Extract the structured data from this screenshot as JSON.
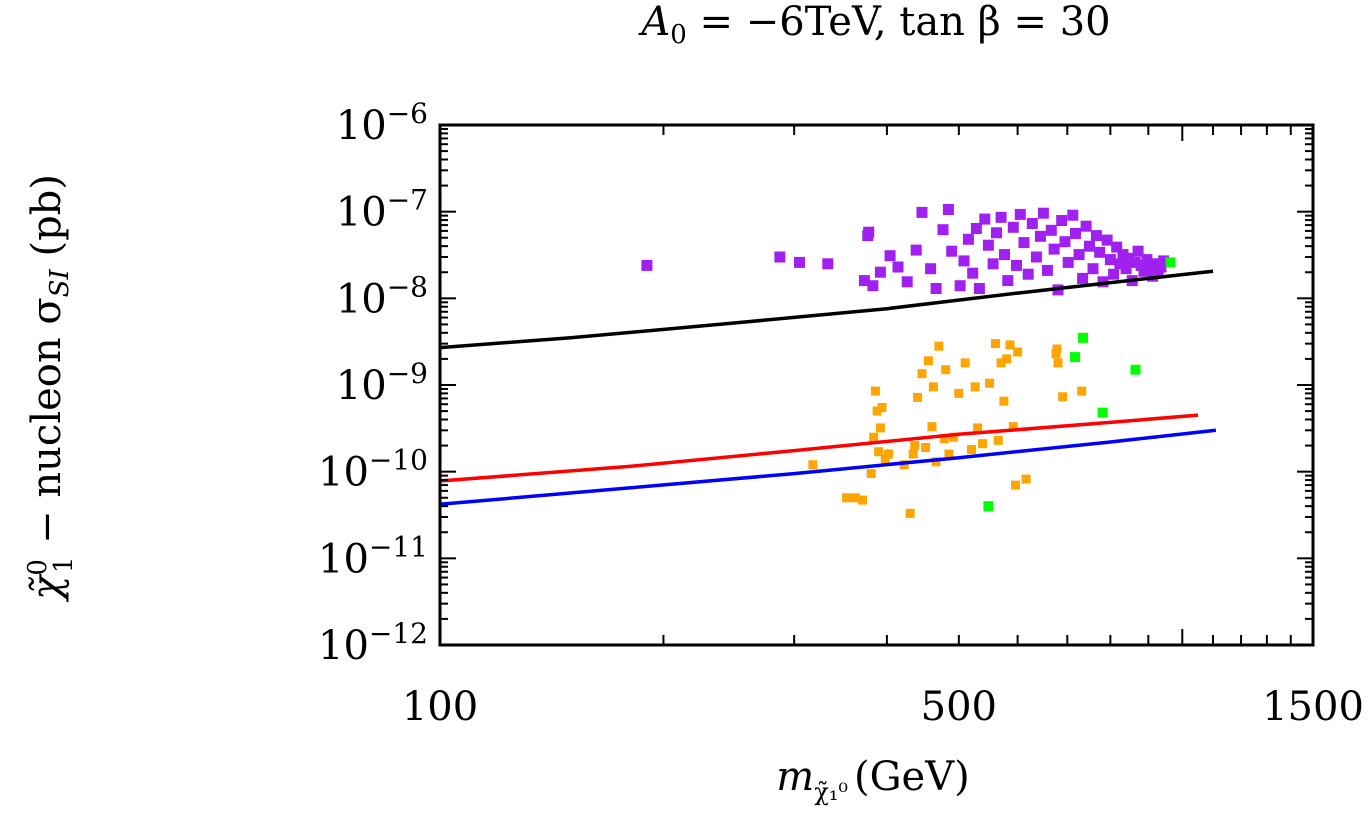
{
  "chart_data": {
    "type": "scatter",
    "title": {
      "base": "A",
      "sub": "0",
      "rest": " = −6TeV, tan β = 30"
    },
    "xlabel": {
      "base": "m",
      "sub": "χ̃₁⁰",
      "unit": "(GeV)"
    },
    "ylabel": {
      "main": "χ̃",
      "sup": "0",
      "sub": "1",
      "mid": " − nucleon σ",
      "sigma_sub": "SI",
      "unit": " (pb)"
    },
    "xscale": "log",
    "yscale": "log",
    "xlim": [
      100,
      1500
    ],
    "ylim": [
      1e-12,
      1e-06
    ],
    "x_ticks": [
      100,
      500,
      1500
    ],
    "x_tick_labels": [
      "100",
      "500",
      "1500"
    ],
    "y_ticks": [
      {
        "value": 1e-06,
        "base": "10",
        "exp": "−6"
      },
      {
        "value": 1e-07,
        "base": "10",
        "exp": "−7"
      },
      {
        "value": 1e-08,
        "base": "10",
        "exp": "−8"
      },
      {
        "value": 1e-09,
        "base": "10",
        "exp": "−9"
      },
      {
        "value": 1e-10,
        "base": "10",
        "exp": "−10"
      },
      {
        "value": 1e-11,
        "base": "10",
        "exp": "−11"
      },
      {
        "value": 1e-12,
        "base": "10",
        "exp": "−12"
      }
    ],
    "lines": [
      {
        "name": "black-limit",
        "color": "#000000",
        "points": [
          [
            100,
            2.7e-09
          ],
          [
            150,
            3.5e-09
          ],
          [
            250,
            5.2e-09
          ],
          [
            400,
            7.6e-09
          ],
          [
            600,
            1.15e-08
          ],
          [
            900,
            1.7e-08
          ],
          [
            1100,
            2.05e-08
          ]
        ]
      },
      {
        "name": "red-limit",
        "color": "#ff0000",
        "points": [
          [
            100,
            7.8e-11
          ],
          [
            180,
            1.15e-10
          ],
          [
            300,
            1.75e-10
          ],
          [
            500,
            2.7e-10
          ],
          [
            800,
            3.7e-10
          ],
          [
            1050,
            4.5e-10
          ]
        ]
      },
      {
        "name": "blue-limit",
        "color": "#0000ff",
        "points": [
          [
            100,
            4.2e-11
          ],
          [
            180,
            6.5e-11
          ],
          [
            300,
            9.5e-11
          ],
          [
            500,
            1.45e-10
          ],
          [
            800,
            2.2e-10
          ],
          [
            1110,
            3e-10
          ]
        ]
      }
    ],
    "series": [
      {
        "name": "purple",
        "color": "#a020f0",
        "marker": "square",
        "points": [
          [
            190,
            2.4e-08
          ],
          [
            287,
            3e-08
          ],
          [
            305,
            2.6e-08
          ],
          [
            333,
            2.5e-08
          ],
          [
            377,
            5.3e-08
          ],
          [
            378,
            5.8e-08
          ],
          [
            373,
            1.6e-08
          ],
          [
            383,
            1.4e-08
          ],
          [
            392,
            2e-08
          ],
          [
            404,
            3.1e-08
          ],
          [
            414,
            2.3e-08
          ],
          [
            426,
            1.55e-08
          ],
          [
            438,
            3.6e-08
          ],
          [
            446,
            9.8e-08
          ],
          [
            458,
            2.2e-08
          ],
          [
            466,
            1.3e-08
          ],
          [
            476,
            6.2e-08
          ],
          [
            484,
            1.06e-07
          ],
          [
            489,
            3.5e-08
          ],
          [
            502,
            1.4e-08
          ],
          [
            508,
            2.7e-08
          ],
          [
            515,
            4.8e-08
          ],
          [
            522,
            1.95e-08
          ],
          [
            528,
            6.4e-08
          ],
          [
            533,
            1.3e-08
          ],
          [
            542,
            8.2e-08
          ],
          [
            548,
            4.1e-08
          ],
          [
            556,
            2.5e-08
          ],
          [
            562,
            5.7e-08
          ],
          [
            570,
            8.6e-08
          ],
          [
            576,
            3.2e-08
          ],
          [
            582,
            1.6e-08
          ],
          [
            592,
            6.6e-08
          ],
          [
            598,
            2.4e-08
          ],
          [
            605,
            9.3e-08
          ],
          [
            612,
            4.4e-08
          ],
          [
            620,
            1.9e-08
          ],
          [
            628,
            7.3e-08
          ],
          [
            636,
            3e-08
          ],
          [
            644,
            5.2e-08
          ],
          [
            650,
            9.6e-08
          ],
          [
            658,
            2.1e-08
          ],
          [
            666,
            6.1e-08
          ],
          [
            672,
            3.7e-08
          ],
          [
            680,
            1.25e-08
          ],
          [
            688,
            7.9e-08
          ],
          [
            695,
            4.5e-08
          ],
          [
            702,
            2.6e-08
          ],
          [
            712,
            9.1e-08
          ],
          [
            718,
            5.6e-08
          ],
          [
            726,
            3.2e-08
          ],
          [
            734,
            1.7e-08
          ],
          [
            742,
            6.8e-08
          ],
          [
            750,
            4e-08
          ],
          [
            758,
            2.2e-08
          ],
          [
            766,
            5.3e-08
          ],
          [
            774,
            3.4e-08
          ],
          [
            782,
            1.55e-08
          ],
          [
            792,
            4.7e-08
          ],
          [
            800,
            2.8e-08
          ],
          [
            808,
            1.9e-08
          ],
          [
            816,
            3.9e-08
          ],
          [
            824,
            2.5e-08
          ],
          [
            832,
            3.2e-08
          ],
          [
            840,
            2.2e-08
          ],
          [
            848,
            2.9e-08
          ],
          [
            856,
            1.6e-08
          ],
          [
            864,
            2.6e-08
          ],
          [
            872,
            3.5e-08
          ],
          [
            880,
            2.4e-08
          ],
          [
            888,
            2.05e-08
          ],
          [
            896,
            2.8e-08
          ],
          [
            904,
            2.2e-08
          ],
          [
            912,
            1.8e-08
          ],
          [
            920,
            2.5e-08
          ],
          [
            928,
            2.1e-08
          ],
          [
            936,
            2.3e-08
          ],
          [
            944,
            2.7e-08
          ]
        ]
      },
      {
        "name": "orange",
        "color": "#ffa500",
        "marker": "square",
        "points": [
          [
            318,
            1.2e-10
          ],
          [
            353,
            5e-11
          ],
          [
            363,
            5e-11
          ],
          [
            371,
            4.7e-11
          ],
          [
            381,
            9.5e-11
          ],
          [
            384,
            2.5e-10
          ],
          [
            386,
            8.5e-10
          ],
          [
            388,
            5e-10
          ],
          [
            390,
            1.7e-10
          ],
          [
            392,
            3.2e-10
          ],
          [
            394,
            5.5e-10
          ],
          [
            398,
            1.4e-10
          ],
          [
            402,
            1.6e-10
          ],
          [
            422,
            1.2e-10
          ],
          [
            430,
            3.3e-11
          ],
          [
            434,
            1.6e-10
          ],
          [
            436,
            2e-10
          ],
          [
            440,
            7.2e-10
          ],
          [
            446,
            1.35e-09
          ],
          [
            451,
            1.9e-10
          ],
          [
            455,
            1.9e-09
          ],
          [
            460,
            3.3e-10
          ],
          [
            462,
            9.5e-10
          ],
          [
            466,
            1.3e-10
          ],
          [
            470,
            2.8e-09
          ],
          [
            478,
            2.4e-10
          ],
          [
            480,
            1.5e-09
          ],
          [
            485,
            1.6e-10
          ],
          [
            492,
            2.5e-10
          ],
          [
            500,
            8e-10
          ],
          [
            510,
            1.8e-09
          ],
          [
            520,
            1.8e-10
          ],
          [
            526,
            9.5e-10
          ],
          [
            530,
            3.2e-10
          ],
          [
            538,
            2.1e-10
          ],
          [
            550,
            1.05e-09
          ],
          [
            560,
            3e-09
          ],
          [
            565,
            2.3e-10
          ],
          [
            570,
            1.8e-09
          ],
          [
            575,
            6.5e-10
          ],
          [
            580,
            2e-09
          ],
          [
            586,
            2.9e-09
          ],
          [
            592,
            3.3e-10
          ],
          [
            596,
            7e-11
          ],
          [
            600,
            2.4e-09
          ],
          [
            616,
            8.2e-11
          ],
          [
            676,
            2.3e-09
          ],
          [
            678,
            2.6e-09
          ],
          [
            680,
            1.8e-09
          ],
          [
            690,
            7.3e-10
          ],
          [
            732,
            8.5e-10
          ]
        ]
      },
      {
        "name": "green",
        "color": "#00ff00",
        "marker": "square",
        "points": [
          [
            548,
            4e-11
          ],
          [
            735,
            3.5e-09
          ],
          [
            717,
            2.1e-09
          ],
          [
            781,
            4.8e-10
          ],
          [
            865,
            1.5e-09
          ],
          [
            964,
            2.6e-08
          ]
        ]
      }
    ]
  }
}
